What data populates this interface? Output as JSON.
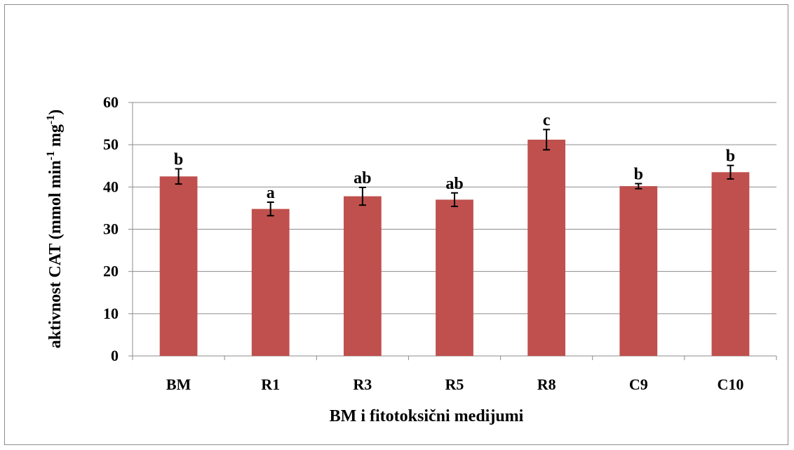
{
  "chart_data": {
    "type": "bar",
    "title": "",
    "xlabel": "BM i fitotoksični medijumi",
    "ylabel": {
      "prefix": "aktivnost CAT (mmol min",
      "sup1": "-1",
      "middle": " mg",
      "sup2": "-1",
      "suffix": ")"
    },
    "ylim": [
      0,
      60
    ],
    "yticks": [
      0,
      10,
      20,
      30,
      40,
      50,
      60
    ],
    "grid": true,
    "bar_color": "#C0504D",
    "categories": [
      "BM",
      "R1",
      "R3",
      "R5",
      "R8",
      "C9",
      "C10"
    ],
    "values": [
      42.5,
      34.8,
      37.8,
      37.0,
      51.2,
      40.2,
      43.5
    ],
    "errors": [
      1.8,
      1.6,
      2.1,
      1.6,
      2.4,
      0.6,
      1.6
    ],
    "significance_labels": [
      "b",
      "a",
      "ab",
      "ab",
      "c",
      "b",
      "b"
    ]
  }
}
